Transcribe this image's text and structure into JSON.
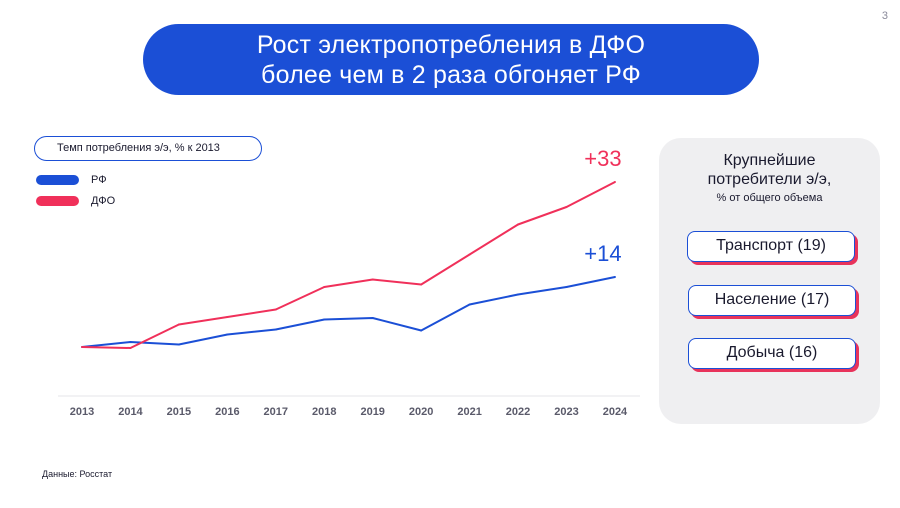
{
  "page": {
    "number": "3"
  },
  "title": {
    "line1": "Рост электропотребления в ДФО",
    "line2": "более чем в 2 раза обгоняет РФ"
  },
  "metric_label": "Темп потребления э/э, % к 2013",
  "colors": {
    "rf": "#1b4fd6",
    "dfo": "#f0305a",
    "banner": "#1b4fd6",
    "panel": "#efeff1"
  },
  "chart_data": {
    "type": "line",
    "title": "Темп потребления э/э, % к 2013",
    "x": [
      "2013",
      "2014",
      "2015",
      "2016",
      "2017",
      "2018",
      "2019",
      "2020",
      "2021",
      "2022",
      "2023",
      "2024"
    ],
    "series": [
      {
        "name": "РФ",
        "color": "#1b4fd6",
        "values": [
          0,
          1,
          0.5,
          2.5,
          3.5,
          5.5,
          5.8,
          3.3,
          8.5,
          10.5,
          12,
          14
        ]
      },
      {
        "name": "ДФО",
        "color": "#f0305a",
        "values": [
          0,
          -0.2,
          4.5,
          6,
          7.5,
          12,
          13.5,
          12.5,
          18.5,
          24.5,
          28,
          33
        ]
      }
    ],
    "end_labels": [
      "+14",
      "+33"
    ],
    "ylim": [
      -3,
      36
    ],
    "legend": "top-left",
    "grid": false
  },
  "panel": {
    "heading": [
      "Крупнейшие",
      "потребители э/э,"
    ],
    "subheading": "% от общего объема",
    "consumers": [
      "Транспорт (19)",
      "Население (17)",
      "Добыча (16)"
    ]
  },
  "source": "Данные: Росстат"
}
